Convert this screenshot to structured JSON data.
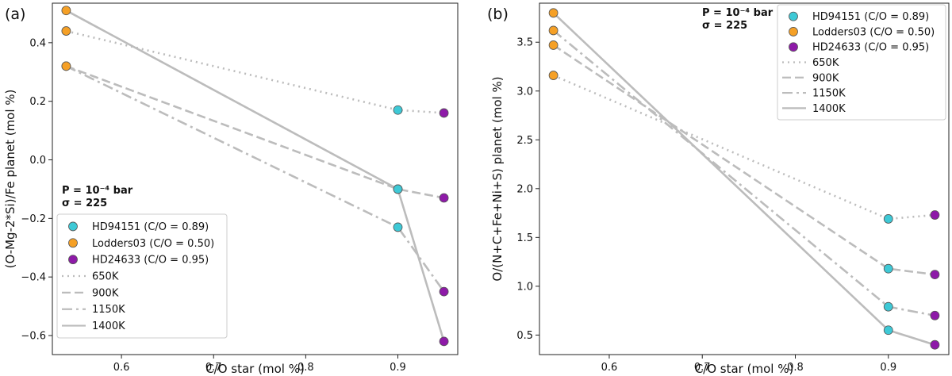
{
  "chart_data": [
    {
      "type": "line",
      "panel": "(a)",
      "xlabel": "C/O star (mol %)",
      "ylabel": "(O-Mg-2*Si)/Fe planet (mol %)",
      "xlim": [
        0.525,
        0.965
      ],
      "ylim": [
        -0.665,
        0.535
      ],
      "xticks": [
        0.6,
        0.7,
        0.8,
        0.9
      ],
      "xtick_labels": [
        "0.6",
        "0.7",
        "0.8",
        "0.9"
      ],
      "yticks": [
        -0.6,
        -0.4,
        -0.2,
        0.0,
        0.2,
        0.4
      ],
      "ytick_labels": [
        "−0.6",
        "−0.4",
        "−0.2",
        "0.0",
        "0.2",
        "0.4"
      ],
      "annotation_lines": [
        "P = 10⁻⁴ bar",
        "σ = 225"
      ],
      "legend_position": "lower-left",
      "x": [
        0.54,
        0.9,
        0.95
      ],
      "series": [
        {
          "name": "650K",
          "values": [
            0.44,
            0.17,
            0.16
          ]
        },
        {
          "name": "900K",
          "values": [
            0.32,
            -0.1,
            -0.13
          ]
        },
        {
          "name": "1150K",
          "values": [
            0.32,
            -0.23,
            -0.45
          ]
        },
        {
          "name": "1400K",
          "values": [
            0.51,
            -0.1,
            -0.62
          ]
        }
      ]
    },
    {
      "type": "line",
      "panel": "(b)",
      "xlabel": "C/O star (mol %)",
      "ylabel": "O/(N+C+Fe+Ni+S) planet (mol %)",
      "xlim": [
        0.525,
        0.965
      ],
      "ylim": [
        0.3,
        3.9
      ],
      "xticks": [
        0.6,
        0.7,
        0.8,
        0.9
      ],
      "xtick_labels": [
        "0.6",
        "0.7",
        "0.8",
        "0.9"
      ],
      "yticks": [
        0.5,
        1.0,
        1.5,
        2.0,
        2.5,
        3.0,
        3.5
      ],
      "ytick_labels": [
        "0.5",
        "1.0",
        "1.5",
        "2.0",
        "2.5",
        "3.0",
        "3.5"
      ],
      "annotation_lines": [
        "P = 10⁻⁴ bar",
        "σ = 225"
      ],
      "legend_position": "upper-right",
      "x": [
        0.54,
        0.9,
        0.95
      ],
      "series": [
        {
          "name": "650K",
          "values": [
            3.16,
            1.69,
            1.73
          ]
        },
        {
          "name": "900K",
          "values": [
            3.47,
            1.18,
            1.12
          ]
        },
        {
          "name": "1150K",
          "values": [
            3.62,
            0.79,
            0.7
          ]
        },
        {
          "name": "1400K",
          "values": [
            3.8,
            0.55,
            0.4
          ]
        }
      ]
    }
  ],
  "legend": {
    "markers": [
      {
        "name": "HD94151 (C/O = 0.89)",
        "color": "#3ec9d6"
      },
      {
        "name": "Lodders03 (C/O = 0.50)",
        "color": "#f5a026"
      },
      {
        "name": "HD24633 (C/O = 0.95)",
        "color": "#8e1aa8"
      }
    ],
    "lines": [
      {
        "name": "650K",
        "style": "dotted"
      },
      {
        "name": "900K",
        "style": "dashed"
      },
      {
        "name": "1150K",
        "style": "dashdot"
      },
      {
        "name": "1400K",
        "style": "solid"
      }
    ]
  },
  "colors": {
    "line": "#bcbcbc",
    "marker_edge": "#555555"
  }
}
